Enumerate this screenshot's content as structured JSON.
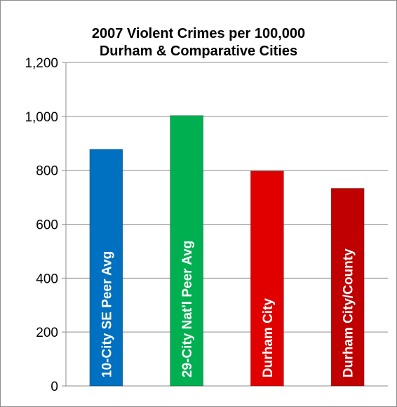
{
  "chart_data": {
    "type": "bar",
    "title": "2007 Violent Crimes per 100,000",
    "subtitle": "Durham & Comparative Cities",
    "categories": [
      "10-City SE Peer Avg",
      "29-City Nat'l Peer Avg",
      "Durham City",
      "Durham City/County"
    ],
    "values": [
      878,
      1003,
      797,
      733
    ],
    "colors": [
      "#0070c0",
      "#00b050",
      "#e00000",
      "#c00000"
    ],
    "ylim": [
      0,
      1200
    ],
    "yticks": [
      0,
      200,
      400,
      600,
      800,
      1000,
      1200
    ],
    "ytick_labels": [
      "0",
      "200",
      "400",
      "600",
      "800",
      "1,000",
      "1,200"
    ],
    "grid": true,
    "legend": "none",
    "xlabel": "",
    "ylabel": ""
  }
}
